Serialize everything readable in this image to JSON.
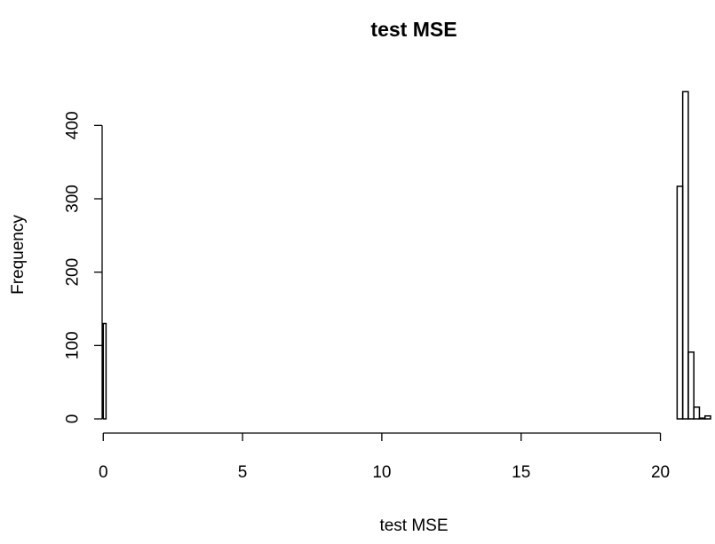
{
  "chart_data": {
    "type": "bar",
    "title": "test MSE",
    "xlabel": "test MSE",
    "ylabel": "Frequency",
    "xlim": [
      -0.04,
      21.8
    ],
    "ylim": [
      0,
      450
    ],
    "x_ticks": [
      0,
      5,
      10,
      15,
      20
    ],
    "y_ticks": [
      0,
      100,
      200,
      300,
      400
    ],
    "grid": false,
    "bin_width": 0.1,
    "bins": [
      {
        "x0": 0.0,
        "x1": 0.1,
        "count": 130
      },
      {
        "x0": 0.1,
        "x1": 20.6,
        "count": 0
      },
      {
        "x0": 20.6,
        "x1": 20.8,
        "count": 317
      },
      {
        "x0": 20.8,
        "x1": 21.0,
        "count": 446
      },
      {
        "x0": 21.0,
        "x1": 21.2,
        "count": 91
      },
      {
        "x0": 21.2,
        "x1": 21.4,
        "count": 16
      },
      {
        "x0": 21.4,
        "x1": 21.6,
        "count": 1
      },
      {
        "x0": 21.6,
        "x1": 21.8,
        "count": 4
      }
    ]
  }
}
